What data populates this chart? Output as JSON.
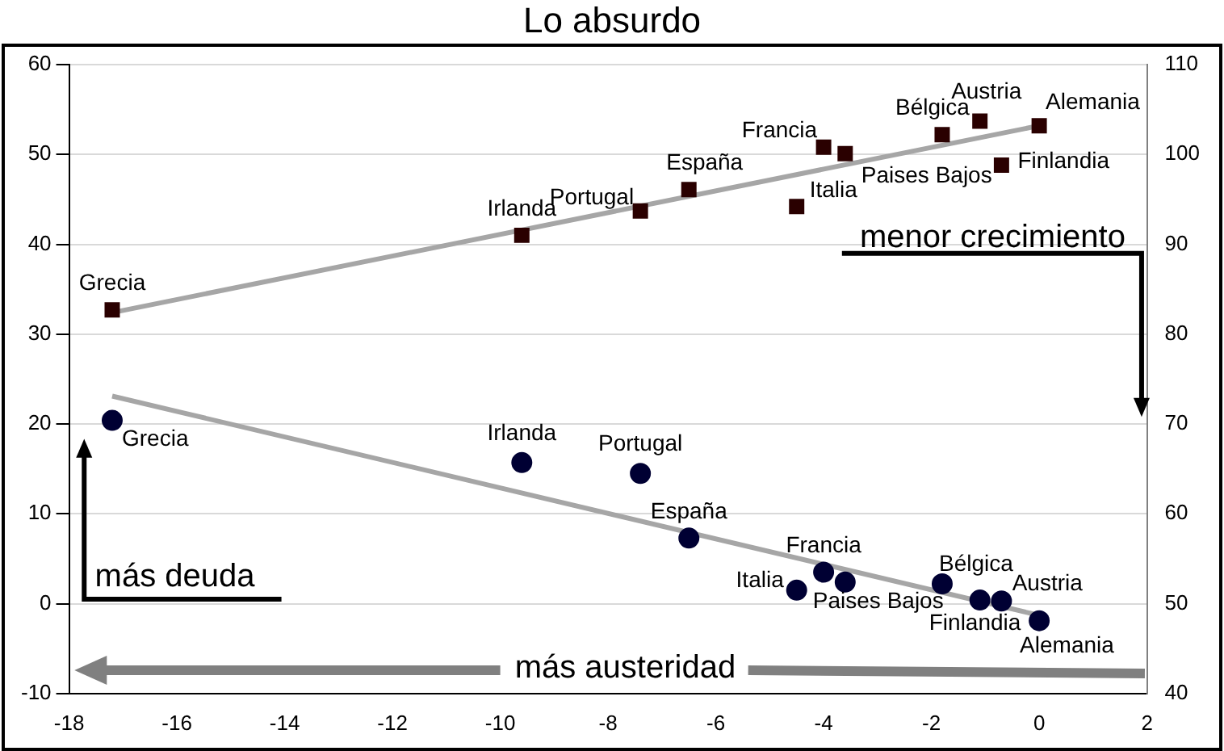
{
  "chart_data": {
    "type": "scatter",
    "title": "Lo absurdo",
    "xlim": [
      -18,
      2
    ],
    "xticks": [
      -18,
      -16,
      -14,
      -12,
      -10,
      -8,
      -6,
      -4,
      -2,
      0,
      2
    ],
    "ylim": [
      -10,
      60
    ],
    "yticks": [
      -10,
      0,
      10,
      20,
      30,
      40,
      50,
      60
    ],
    "y2lim": [
      40,
      110
    ],
    "y2ticks": [
      40,
      50,
      60,
      70,
      80,
      90,
      100,
      110
    ],
    "grid": "y",
    "legend": false,
    "series": [
      {
        "axis": "y2",
        "marker": "square",
        "color": "#2a0000",
        "x": [
          -17.2,
          -9.6,
          -7.4,
          -6.5,
          -4.5,
          -4.0,
          -3.6,
          -1.8,
          -1.1,
          -0.7,
          0
        ],
        "values": [
          82.7,
          91.0,
          93.7,
          96.1,
          94.2,
          100.8,
          100.1,
          102.2,
          103.7,
          98.8,
          103.2
        ],
        "value_labels": [
          "Grecia",
          "Irlanda",
          "Portugal",
          "España",
          "Italia",
          "Francia",
          "Paises Bajos",
          "Bélgica",
          "Austria",
          "Finlandia",
          "Alemania"
        ]
      },
      {
        "type": "line",
        "axis": "y2",
        "marker": "none",
        "color": "#a6a6a6",
        "x": [
          -17.2,
          0
        ],
        "values": [
          82.4,
          103.2
        ]
      },
      {
        "axis": "y",
        "marker": "circle",
        "color": "#000033",
        "x": [
          -17.2,
          -9.6,
          -7.4,
          -6.5,
          -4.5,
          -4.0,
          -3.6,
          -1.8,
          -1.1,
          -0.7,
          0
        ],
        "values": [
          20.4,
          15.7,
          14.5,
          7.3,
          1.5,
          3.5,
          2.4,
          2.2,
          0.4,
          0.3,
          -1.9
        ],
        "value_labels": [
          "Grecia",
          "Irlanda",
          "Portugal",
          "España",
          "Italia",
          "Francia",
          "Paises Bajos",
          "Bélgica",
          "Austria",
          "Finlandia",
          "Alemania"
        ]
      },
      {
        "type": "line",
        "axis": "y",
        "marker": "none",
        "color": "#a6a6a6",
        "x": [
          -17.2,
          0
        ],
        "values": [
          23.1,
          -1.3
        ]
      }
    ],
    "annotations": [
      "menor crecimiento",
      "más deuda",
      "más austeridad"
    ]
  }
}
